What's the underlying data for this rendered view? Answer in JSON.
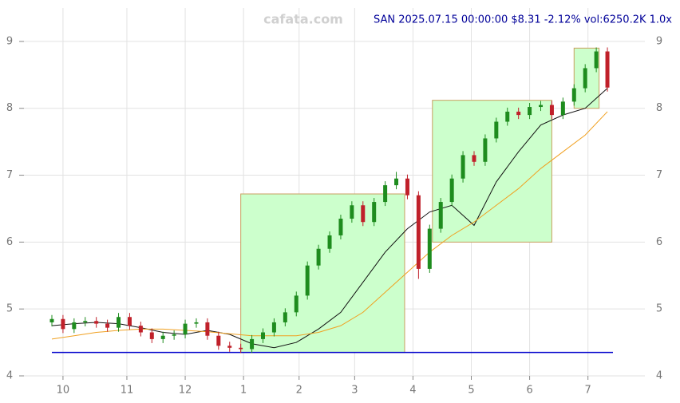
{
  "chart_data": {
    "type": "candlestick",
    "header": "SAN 2025.07.15 00:00:00 $8.31 -2.12% vol:6250.2K 1.0x",
    "watermark": "cafata.com",
    "x": [
      0,
      4,
      8,
      12,
      16,
      20,
      24,
      28,
      32,
      36,
      40,
      44,
      48,
      52,
      56,
      60,
      64,
      68,
      72,
      76,
      80,
      84,
      88,
      92,
      96,
      100,
      104,
      108,
      112,
      116,
      120,
      124,
      128,
      132,
      136,
      140,
      144,
      148,
      152,
      156,
      160,
      164,
      168,
      172,
      176,
      180,
      184,
      188,
      192,
      196,
      200
    ],
    "open": [
      4.8,
      4.85,
      4.7,
      4.8,
      4.82,
      4.78,
      4.72,
      4.88,
      4.75,
      4.65,
      4.55,
      4.6,
      4.62,
      4.78,
      4.8,
      4.6,
      4.45,
      4.42,
      4.4,
      4.55,
      4.65,
      4.8,
      4.95,
      5.2,
      5.65,
      5.9,
      6.1,
      6.35,
      6.55,
      6.3,
      6.6,
      6.85,
      6.95,
      6.7,
      5.6,
      6.2,
      6.6,
      6.95,
      7.3,
      7.2,
      7.55,
      7.8,
      7.95,
      7.9,
      8.02,
      8.05,
      7.9,
      8.1,
      8.3,
      8.6,
      8.85
    ],
    "high": [
      4.91,
      4.91,
      4.86,
      4.88,
      4.88,
      4.84,
      4.94,
      4.94,
      4.81,
      4.71,
      4.66,
      4.68,
      4.84,
      4.86,
      4.86,
      4.66,
      4.51,
      4.48,
      4.61,
      4.71,
      4.86,
      5.01,
      5.26,
      5.71,
      5.96,
      6.16,
      6.41,
      6.61,
      6.61,
      6.66,
      6.91,
      7.05,
      7.01,
      6.76,
      6.26,
      6.66,
      7.01,
      7.36,
      7.36,
      7.61,
      7.86,
      8.01,
      8.01,
      8.08,
      8.11,
      8.11,
      8.16,
      8.36,
      8.66,
      8.91,
      8.91
    ],
    "low": [
      4.74,
      4.64,
      4.64,
      4.74,
      4.72,
      4.66,
      4.66,
      4.69,
      4.59,
      4.49,
      4.49,
      4.54,
      4.56,
      4.72,
      4.54,
      4.39,
      4.36,
      4.34,
      4.34,
      4.49,
      4.59,
      4.74,
      4.89,
      5.14,
      5.59,
      5.84,
      6.04,
      6.29,
      6.24,
      6.24,
      6.54,
      6.79,
      6.64,
      5.45,
      5.54,
      6.14,
      6.54,
      6.89,
      7.14,
      7.14,
      7.49,
      7.74,
      7.84,
      7.84,
      7.96,
      7.84,
      7.84,
      8.04,
      8.24,
      8.54,
      8.25
    ],
    "close": [
      4.85,
      4.7,
      4.8,
      4.82,
      4.78,
      4.72,
      4.88,
      4.75,
      4.65,
      4.55,
      4.6,
      4.62,
      4.78,
      4.8,
      4.6,
      4.45,
      4.42,
      4.4,
      4.55,
      4.65,
      4.8,
      4.95,
      5.2,
      5.65,
      5.9,
      6.1,
      6.35,
      6.55,
      6.3,
      6.6,
      6.85,
      6.95,
      6.7,
      5.6,
      6.2,
      6.6,
      6.95,
      7.3,
      7.2,
      7.55,
      7.8,
      7.95,
      7.9,
      8.02,
      8.05,
      7.9,
      8.1,
      8.3,
      8.6,
      8.85,
      8.31
    ],
    "up_color": "#1e8c1e",
    "down_color": "#c0202a",
    "series": [
      {
        "color": "#111111",
        "x": [
          0,
          8,
          16,
          24,
          32,
          40,
          48,
          56,
          64,
          72,
          80,
          88,
          96,
          104,
          112,
          120,
          128,
          136,
          144,
          152,
          160,
          168,
          176,
          184,
          192,
          200
        ],
        "values": [
          4.75,
          4.78,
          4.8,
          4.78,
          4.72,
          4.65,
          4.62,
          4.68,
          4.62,
          4.48,
          4.42,
          4.5,
          4.7,
          4.95,
          5.4,
          5.85,
          6.2,
          6.45,
          6.55,
          6.25,
          6.9,
          7.35,
          7.75,
          7.9,
          8.0,
          8.3
        ]
      },
      {
        "color": "#f0a020",
        "x": [
          0,
          8,
          16,
          24,
          32,
          40,
          48,
          56,
          64,
          72,
          80,
          88,
          96,
          104,
          112,
          120,
          128,
          136,
          144,
          152,
          160,
          168,
          176,
          184,
          192,
          200
        ],
        "values": [
          4.55,
          4.6,
          4.65,
          4.68,
          4.7,
          4.7,
          4.68,
          4.66,
          4.63,
          4.6,
          4.6,
          4.6,
          4.65,
          4.75,
          4.95,
          5.25,
          5.55,
          5.85,
          6.1,
          6.3,
          6.55,
          6.8,
          7.1,
          7.35,
          7.6,
          7.95
        ]
      }
    ],
    "zones": [
      {
        "x0": 68,
        "x1": 127,
        "y0": 4.35,
        "y1": 6.72
      },
      {
        "x0": 137,
        "x1": 180,
        "y0": 6.0,
        "y1": 8.12
      },
      {
        "x0": 188,
        "x1": 197,
        "y0": 8.0,
        "y1": 8.9
      }
    ],
    "zone_color": "#ccffcc",
    "support_line": 4.35,
    "support_color": "#0000cc",
    "xlim": [
      0,
      202
    ],
    "ylim": [
      4,
      9.5
    ],
    "yticks": [
      4,
      5,
      6,
      7,
      8,
      9
    ],
    "xticks": [
      {
        "value": 4,
        "label": "10"
      },
      {
        "value": 27,
        "label": "11"
      },
      {
        "value": 48,
        "label": "12"
      },
      {
        "value": 69,
        "label": "1"
      },
      {
        "value": 89,
        "label": "2"
      },
      {
        "value": 109,
        "label": "3"
      },
      {
        "value": 130,
        "label": "4"
      },
      {
        "value": 151,
        "label": "5"
      },
      {
        "value": 172,
        "label": "6"
      },
      {
        "value": 193,
        "label": "7"
      }
    ],
    "grid": true
  }
}
